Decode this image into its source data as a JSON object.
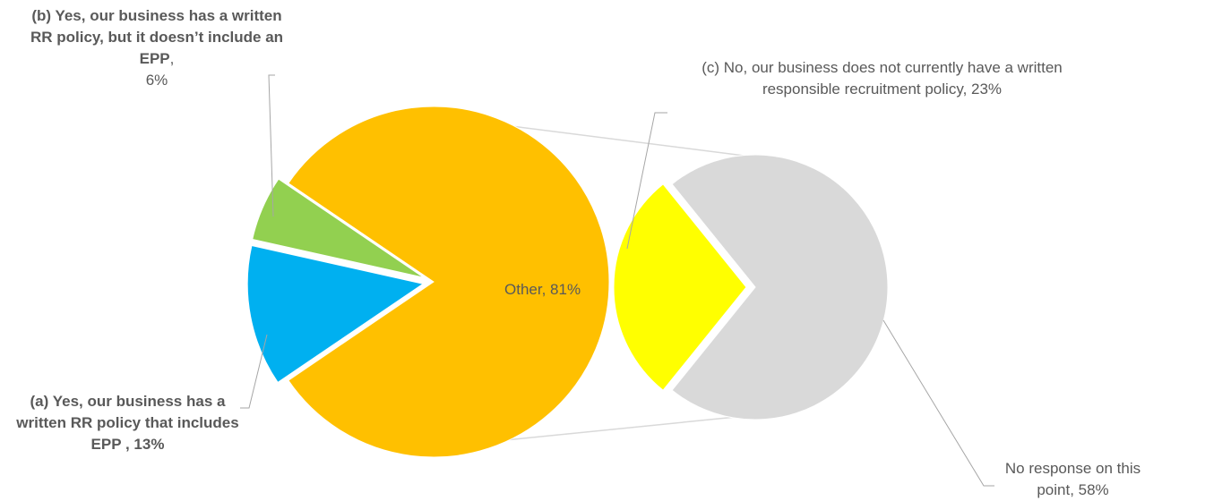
{
  "chart_data": {
    "type": "pie-of-pie",
    "main_pie": {
      "slices": [
        {
          "name": "(a) Yes, our business has a written RR policy that includes EPP ",
          "value": 13,
          "label": "13%",
          "color": "#00b0f0",
          "exploded": true
        },
        {
          "name": "(b) Yes, our business has a written RR policy, but it doesn’t include an EPP",
          "value": 6,
          "label": "6%",
          "color": "#92d050",
          "exploded": true
        },
        {
          "name": "Other",
          "value": 81,
          "label": "81%",
          "color": "#ffc000",
          "exploded": false
        }
      ]
    },
    "secondary_pie": {
      "source": "Other",
      "slices": [
        {
          "name": "(c) No, our business does not currently have a written responsible recruitment policy",
          "value": 23,
          "label": "23%",
          "color": "#ffff00",
          "exploded": true
        },
        {
          "name": "No response on this point",
          "value": 58,
          "label": "58%",
          "color": "#d9d9d9",
          "exploded": false
        }
      ]
    },
    "legend": "none",
    "connector_color": "#d9d9d9"
  }
}
